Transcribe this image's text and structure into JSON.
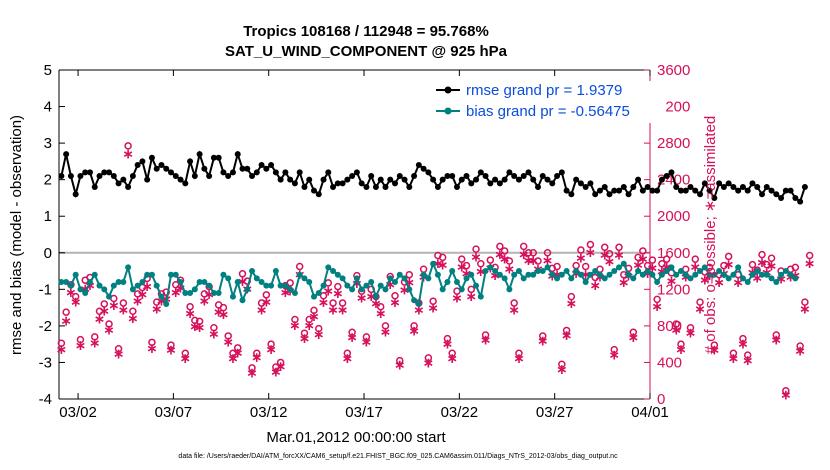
{
  "chart_data": {
    "type": "line",
    "title": "Tropics 108168 / 112948 = 95.768%",
    "subtitle": "SAT_U_WIND_COMPONENT @ 925 hPa",
    "xlabel": "Mar.01,2012 00:00:00 start",
    "ylabel": "rmse and bias (model - observation)",
    "ylabel_right": "# of obs: o=possible; ∗=assimilated",
    "footer": "data file: /Users/raeder/DAI/ATM_forcXX/CAM6_setup/f.e21.FHIST_BGC.f09_025.CAM6assim.011/Diags_NTrS_2012-03/obs_diag_output.nc",
    "xlim": [
      0.5,
      31.5
    ],
    "ylim": [
      -4,
      5
    ],
    "ylim_right": [
      0,
      3600
    ],
    "x_ticks": [
      1.5,
      6.5,
      11.5,
      16.5,
      21.5,
      26.5,
      31.5
    ],
    "x_tick_labels": [
      "03/02",
      "03/07",
      "03/12",
      "03/17",
      "03/22",
      "03/27",
      "04/01"
    ],
    "y_ticks": [
      -4,
      -3,
      -2,
      -1,
      0,
      1,
      2,
      3,
      4,
      5
    ],
    "y_ticks_right": [
      0,
      400,
      800,
      1200,
      1600,
      2000,
      2400,
      2800,
      3200,
      3600
    ],
    "reference_line": 0,
    "colors": {
      "rmse": "#000000",
      "bias": "#008080",
      "obs": "#d6105a",
      "legend_text": "#0a4ddb",
      "zero_line": "#b4b4b4"
    },
    "legend": [
      {
        "name": "rmse grand pr = 1.9379",
        "marker": "circle-filled",
        "color": "#000000"
      },
      {
        "name": "bias grand pr = -0.56475",
        "marker": "circle-filled",
        "color": "#008080"
      }
    ],
    "x_start": 0.625,
    "x_step": 0.25,
    "series": [
      {
        "name": "rmse",
        "values": [
          2.1,
          2.7,
          2.1,
          1.6,
          2.1,
          2.2,
          2.2,
          1.8,
          2.1,
          2.2,
          2.2,
          2.1,
          1.9,
          2.0,
          1.8,
          2.1,
          2.4,
          2.5,
          2.0,
          2.6,
          2.3,
          2.4,
          2.3,
          2.2,
          2.1,
          2.0,
          1.9,
          2.5,
          2.1,
          2.7,
          2.3,
          2.1,
          2.6,
          2.6,
          2.2,
          2.1,
          2.2,
          2.7,
          2.3,
          2.3,
          2.1,
          2.2,
          2.4,
          2.3,
          2.4,
          2.2,
          2.0,
          2.2,
          2.0,
          1.9,
          2.2,
          1.8,
          2.0,
          1.7,
          1.6,
          2.0,
          2.2,
          1.8,
          1.9,
          1.9,
          2.0,
          2.1,
          2.2,
          1.9,
          1.8,
          2.1,
          1.8,
          2.0,
          1.8,
          2.0,
          1.9,
          2.1,
          2.0,
          1.8,
          2.1,
          2.4,
          2.3,
          2.2,
          2.0,
          1.8,
          2.0,
          2.1,
          2.1,
          1.8,
          2.0,
          2.1,
          1.9,
          2.0,
          2.2,
          2.1,
          1.9,
          2.0,
          1.9,
          2.0,
          2.2,
          2.1,
          2.0,
          2.1,
          2.2,
          2.0,
          1.8,
          2.1,
          2.0,
          1.9,
          2.1,
          2.2,
          1.7,
          1.6,
          2.0,
          1.9,
          1.8,
          1.9,
          1.6,
          1.7,
          1.8,
          1.6,
          1.7,
          1.7,
          1.8,
          1.6,
          1.8,
          2.0,
          1.7,
          1.8,
          1.7,
          1.7,
          2.0,
          2.1,
          2.2,
          1.8,
          1.7,
          1.7,
          1.8,
          1.7,
          1.6,
          1.9,
          1.7,
          1.5,
          1.9,
          1.8,
          1.9,
          1.8,
          1.7,
          1.8,
          1.7,
          1.9,
          1.8,
          1.6,
          1.8,
          1.7,
          1.6,
          1.5,
          1.7,
          1.7,
          1.5,
          1.4,
          1.8
        ]
      },
      {
        "name": "bias",
        "values": [
          -0.8,
          -0.8,
          -0.9,
          -0.6,
          -1.0,
          -1.1,
          -0.8,
          -0.6,
          -0.9,
          -1.0,
          -1.2,
          -0.9,
          -0.8,
          -0.8,
          -0.4,
          -1.0,
          -0.9,
          -0.8,
          -0.6,
          -0.6,
          -0.9,
          -1.2,
          -1.4,
          -0.6,
          -0.6,
          -0.8,
          -1.1,
          -1.1,
          -1.0,
          -0.8,
          -0.8,
          -0.9,
          -1.1,
          -1.1,
          -0.6,
          -0.7,
          -1.2,
          -0.8,
          -1.3,
          -1.0,
          -0.5,
          -0.7,
          -0.8,
          -0.9,
          -0.9,
          -0.5,
          -0.9,
          -0.9,
          -1.0,
          -1.1,
          -0.6,
          -0.7,
          -0.8,
          -1.2,
          -1.1,
          -0.9,
          -0.4,
          -0.5,
          -0.6,
          -0.7,
          -0.9,
          -1.0,
          -0.7,
          -1.0,
          -0.9,
          -0.8,
          -1.2,
          -0.9,
          -1.0,
          -0.7,
          -0.8,
          -0.6,
          -0.7,
          -1.0,
          -1.3,
          -1.4,
          -0.6,
          -0.7,
          -0.3,
          -0.6,
          -1.0,
          -0.8,
          -0.5,
          -0.8,
          -1.0,
          -0.7,
          -0.6,
          -0.9,
          -1.2,
          -0.5,
          -0.4,
          -0.5,
          -0.6,
          -0.7,
          -1.0,
          -0.6,
          -0.5,
          -0.7,
          -0.6,
          -0.6,
          -0.5,
          -0.5,
          -0.4,
          -0.6,
          -0.7,
          -0.6,
          -0.5,
          -0.7,
          -0.5,
          -0.6,
          -0.8,
          -0.6,
          -0.5,
          -0.6,
          -0.7,
          -0.6,
          -0.5,
          -0.4,
          -0.3,
          -0.6,
          -0.7,
          -0.5,
          -0.6,
          -0.5,
          -0.6,
          -0.8,
          -0.6,
          -0.5,
          -0.4,
          -0.6,
          -0.5,
          -0.6,
          -0.7,
          -0.6,
          -0.5,
          -0.4,
          -0.6,
          -0.6,
          -0.5,
          -0.6,
          -0.7,
          -0.6,
          -0.4,
          -0.7,
          -0.8,
          -0.6,
          -0.5,
          -0.6,
          -0.6,
          -0.7,
          -0.8,
          -0.6,
          -0.5,
          -0.6,
          -0.7
        ]
      },
      {
        "name": "obs_possible",
        "axis": "right",
        "values": [
          610,
          950,
          1250,
          1120,
          650,
          1300,
          1330,
          680,
          960,
          1040,
          820,
          1100,
          550,
          1050,
          2770,
          960,
          1150,
          1220,
          1320,
          620,
          1060,
          1150,
          1170,
          590,
          1250,
          1300,
          500,
          1010,
          860,
          850,
          1150,
          1230,
          780,
          1030,
          1000,
          690,
          500,
          560,
          1370,
          1290,
          340,
          500,
          1050,
          1140,
          600,
          350,
          400,
          1240,
          1270,
          870,
          1450,
          720,
          870,
          970,
          770,
          1130,
          1270,
          1050,
          1230,
          1050,
          500,
          730,
          1350,
          1180,
          680,
          1200,
          1120,
          1010,
          800,
          1340,
          1130,
          420,
          1280,
          1360,
          800,
          1050,
          1420,
          450,
          1070,
          1570,
          1550,
          660,
          500,
          1180,
          1530,
          1460,
          1200,
          1640,
          1480,
          700,
          1520,
          1440,
          1670,
          1620,
          1510,
          1050,
          500,
          1670,
          1600,
          1600,
          1510,
          690,
          1600,
          1430,
          1450,
          380,
          750,
          1120,
          1460,
          1630,
          1450,
          1690,
          1330,
          1420,
          1660,
          1590,
          540,
          1660,
          1360,
          1430,
          730,
          1550,
          1620,
          1460,
          1520,
          1090,
          1480,
          1530,
          1380,
          820,
          600,
          1420,
          780,
          1530,
          1060,
          1390,
          1440,
          590,
          1360,
          1460,
          1560,
          500,
          1360,
          660,
          480,
          1470,
          1410,
          1580,
          1470,
          1540,
          700,
          1400,
          90,
          1420,
          1440,
          580,
          1060,
          1570
        ]
      },
      {
        "name": "obs_assimilated",
        "axis": "right",
        "values": [
          560,
          870,
          1180,
          1080,
          600,
          1220,
          1260,
          630,
          890,
          980,
          770,
          1040,
          510,
          990,
          2700,
          900,
          1090,
          1160,
          1250,
          570,
          1000,
          1090,
          1110,
          550,
          1180,
          1230,
          460,
          950,
          810,
          800,
          1090,
          1160,
          730,
          970,
          940,
          640,
          460,
          520,
          1300,
          1220,
          300,
          470,
          990,
          1080,
          560,
          310,
          370,
          1180,
          1200,
          820,
          1380,
          680,
          820,
          920,
          720,
          1070,
          1200,
          990,
          1170,
          990,
          460,
          690,
          1280,
          1120,
          640,
          1140,
          1060,
          950,
          750,
          1270,
          1070,
          390,
          1210,
          1290,
          760,
          990,
          1350,
          410,
          1010,
          1500,
          1480,
          620,
          460,
          1120,
          1460,
          1390,
          1140,
          1570,
          1410,
          660,
          1450,
          1370,
          1600,
          1550,
          1440,
          990,
          460,
          1600,
          1530,
          1530,
          1440,
          650,
          1530,
          1360,
          1380,
          340,
          710,
          1060,
          1390,
          1560,
          1380,
          1620,
          1260,
          1350,
          1590,
          1520,
          500,
          1590,
          1290,
          1360,
          690,
          1480,
          1550,
          1390,
          1450,
          1030,
          1410,
          1460,
          1310,
          770,
          560,
          1350,
          740,
          1460,
          1000,
          1320,
          1370,
          550,
          1290,
          1390,
          1490,
          460,
          1290,
          620,
          440,
          1400,
          1340,
          1510,
          1400,
          1470,
          660,
          1330,
          60,
          1350,
          1370,
          540,
          1000,
          1500
        ]
      }
    ]
  }
}
